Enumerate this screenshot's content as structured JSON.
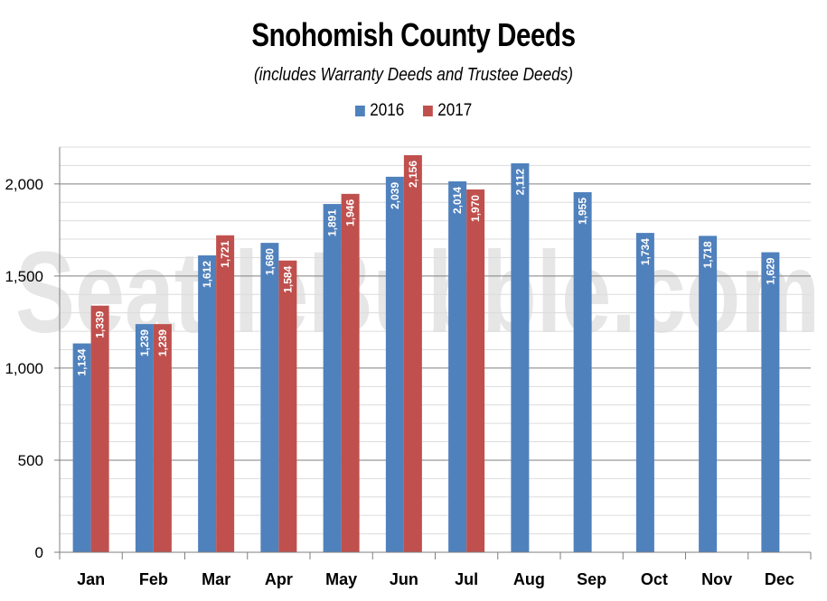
{
  "chart_data": {
    "type": "bar",
    "title": "Snohomish County Deeds",
    "subtitle": "(includes Warranty Deeds and Trustee Deeds)",
    "watermark": "SeattleBubble.com",
    "categories": [
      "Jan",
      "Feb",
      "Mar",
      "Apr",
      "May",
      "Jun",
      "Jul",
      "Aug",
      "Sep",
      "Oct",
      "Nov",
      "Dec"
    ],
    "series": [
      {
        "name": "2016",
        "color": "#4f81bd",
        "values": [
          1134,
          1239,
          1612,
          1680,
          1891,
          2039,
          2014,
          2112,
          1955,
          1734,
          1718,
          1629
        ],
        "labels": [
          "1,134",
          "1,239",
          "1,612",
          "1,680",
          "1,891",
          "2,039",
          "2,014",
          "2,112",
          "1,955",
          "1,734",
          "1,718",
          "1,629"
        ]
      },
      {
        "name": "2017",
        "color": "#c0504d",
        "values": [
          1339,
          1239,
          1721,
          1584,
          1946,
          2156,
          1970,
          null,
          null,
          null,
          null,
          null
        ],
        "labels": [
          "1,339",
          "1,239",
          "1,721",
          "1,584",
          "1,946",
          "2,156",
          "1,970",
          null,
          null,
          null,
          null,
          null
        ]
      }
    ],
    "y_ticks": [
      0,
      500,
      1000,
      1500,
      2000
    ],
    "y_tick_labels": [
      "0",
      "500",
      "1,000",
      "1,500",
      "2,000"
    ],
    "ylim": [
      0,
      2200
    ],
    "grid": true,
    "legend_position": "top-center",
    "data_label_rotation": "vertical"
  }
}
